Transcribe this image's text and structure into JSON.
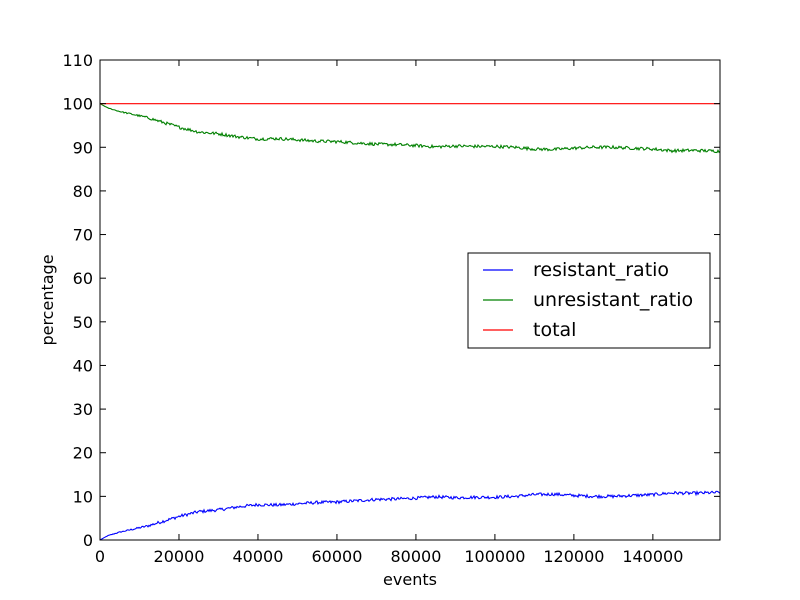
{
  "chart_data": {
    "type": "line",
    "xlabel": "events",
    "ylabel": "percentage",
    "xlim": [
      0,
      157000
    ],
    "ylim": [
      0,
      110
    ],
    "x_ticks": [
      0,
      20000,
      40000,
      60000,
      80000,
      100000,
      120000,
      140000
    ],
    "x_tick_labels": [
      "0",
      "20000",
      "40000",
      "60000",
      "80000",
      "100000",
      "120000",
      "140000"
    ],
    "y_ticks": [
      0,
      10,
      20,
      30,
      40,
      50,
      60,
      70,
      80,
      90,
      100,
      110
    ],
    "y_tick_labels": [
      "0",
      "10",
      "20",
      "30",
      "40",
      "50",
      "60",
      "70",
      "80",
      "90",
      "100",
      "110"
    ],
    "grid": false,
    "legend_position": "center-right",
    "series": [
      {
        "name": "resistant_ratio",
        "color": "#0000ff",
        "x": [
          0,
          2000,
          5000,
          8000,
          12000,
          16000,
          20000,
          25000,
          30000,
          35000,
          40000,
          45000,
          50000,
          55000,
          60000,
          65000,
          70000,
          75000,
          80000,
          85000,
          90000,
          95000,
          100000,
          105000,
          110000,
          115000,
          120000,
          125000,
          130000,
          135000,
          140000,
          145000,
          150000,
          157000
        ],
        "y": [
          0,
          1.0,
          1.8,
          2.4,
          3.2,
          4.3,
          5.4,
          6.5,
          6.9,
          7.6,
          8.1,
          8.0,
          8.3,
          8.6,
          8.7,
          9.0,
          9.3,
          9.4,
          9.6,
          9.9,
          9.7,
          9.8,
          9.8,
          10.0,
          10.4,
          10.5,
          10.2,
          10.0,
          10.0,
          10.2,
          10.4,
          10.8,
          10.7,
          10.9
        ]
      },
      {
        "name": "unresistant_ratio",
        "color": "#008000",
        "x": [
          0,
          2000,
          5000,
          8000,
          12000,
          16000,
          20000,
          25000,
          30000,
          35000,
          40000,
          45000,
          50000,
          55000,
          60000,
          65000,
          70000,
          75000,
          80000,
          85000,
          90000,
          95000,
          100000,
          105000,
          110000,
          115000,
          120000,
          125000,
          130000,
          135000,
          140000,
          145000,
          150000,
          157000
        ],
        "y": [
          100,
          99.0,
          98.2,
          97.6,
          96.8,
          95.7,
          94.6,
          93.5,
          93.1,
          92.4,
          91.9,
          92.0,
          91.7,
          91.4,
          91.3,
          91.0,
          90.7,
          90.6,
          90.4,
          90.1,
          90.3,
          90.2,
          90.2,
          90.0,
          89.6,
          89.5,
          89.8,
          90.0,
          90.0,
          89.8,
          89.6,
          89.2,
          89.3,
          89.1
        ]
      },
      {
        "name": "total",
        "color": "#ff0000",
        "x": [
          0,
          157000
        ],
        "y": [
          100,
          100
        ]
      }
    ]
  }
}
